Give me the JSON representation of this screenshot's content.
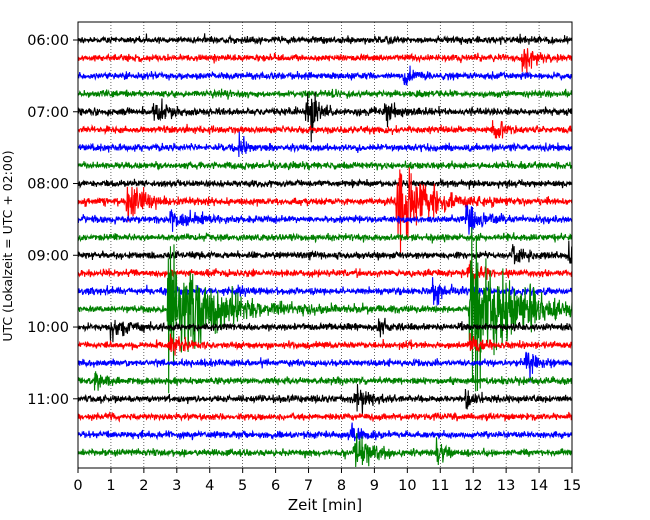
{
  "chart_data": {
    "type": "line",
    "xlabel": "Zeit  [min]",
    "ylabel": "UTC (Lokalzeit = UTC + 02:00)",
    "xlim": [
      0,
      15
    ],
    "x_ticks": [
      0,
      1,
      2,
      3,
      4,
      5,
      6,
      7,
      8,
      9,
      10,
      11,
      12,
      13,
      14,
      15
    ],
    "x_tick_labels": [
      "0",
      "1",
      "2",
      "3",
      "4",
      "5",
      "6",
      "7",
      "8",
      "9",
      "10",
      "11",
      "12",
      "13",
      "14",
      "15"
    ],
    "y_tick_labels": [
      "06:00",
      "07:00",
      "08:00",
      "09:00",
      "10:00",
      "11:00"
    ],
    "y_tick_rows": [
      0,
      4,
      8,
      12,
      16,
      20
    ],
    "row_minutes": 15,
    "color_cycle": [
      "#000000",
      "#ff0000",
      "#0000ff",
      "#008000"
    ],
    "grid": {
      "x": "dotted"
    },
    "rows": [
      {
        "label": "06:00",
        "color": "#000000",
        "events": []
      },
      {
        "label": "06:15",
        "color": "#ff0000",
        "events": [
          {
            "t": 13.5,
            "amp": 2.2,
            "dur": 0.3
          }
        ]
      },
      {
        "label": "06:30",
        "color": "#0000ff",
        "events": [
          {
            "t": 9.9,
            "amp": 1.6,
            "dur": 0.2
          }
        ]
      },
      {
        "label": "06:45",
        "color": "#008000",
        "events": []
      },
      {
        "label": "07:00",
        "color": "#000000",
        "events": [
          {
            "t": 6.95,
            "amp": 5.0,
            "dur": 0.25
          },
          {
            "t": 2.3,
            "amp": 1.5,
            "dur": 0.4
          },
          {
            "t": 9.3,
            "amp": 1.4,
            "dur": 0.3
          }
        ]
      },
      {
        "label": "07:15",
        "color": "#ff0000",
        "events": [
          {
            "t": 12.6,
            "amp": 1.5,
            "dur": 0.3
          }
        ]
      },
      {
        "label": "07:30",
        "color": "#0000ff",
        "events": [
          {
            "t": 4.9,
            "amp": 1.3,
            "dur": 0.2
          }
        ]
      },
      {
        "label": "07:45",
        "color": "#008000",
        "events": []
      },
      {
        "label": "08:00",
        "color": "#000000",
        "events": []
      },
      {
        "label": "08:15",
        "color": "#ff0000",
        "events": [
          {
            "t": 1.5,
            "amp": 2.6,
            "dur": 0.5
          },
          {
            "t": 9.7,
            "amp": 7.5,
            "dur": 0.7
          }
        ]
      },
      {
        "label": "08:30",
        "color": "#0000ff",
        "events": [
          {
            "t": 2.8,
            "amp": 1.4,
            "dur": 0.6
          },
          {
            "t": 11.8,
            "amp": 3.5,
            "dur": 0.3
          }
        ]
      },
      {
        "label": "08:45",
        "color": "#008000",
        "events": []
      },
      {
        "label": "09:00",
        "color": "#000000",
        "events": [
          {
            "t": 13.2,
            "amp": 1.3,
            "dur": 0.3
          },
          {
            "t": 14.9,
            "amp": 1.3,
            "dur": 0.2
          }
        ]
      },
      {
        "label": "09:15",
        "color": "#ff0000",
        "events": [
          {
            "t": 11.85,
            "amp": 2.0,
            "dur": 0.3
          }
        ]
      },
      {
        "label": "09:30",
        "color": "#0000ff",
        "events": [
          {
            "t": 4.75,
            "amp": 1.6,
            "dur": 0.15
          },
          {
            "t": 10.8,
            "amp": 2.0,
            "dur": 0.3
          }
        ]
      },
      {
        "label": "09:45",
        "color": "#008000",
        "events": [
          {
            "t": 2.75,
            "amp": 9.0,
            "dur": 1.2
          },
          {
            "t": 11.9,
            "amp": 10.0,
            "dur": 1.2
          }
        ]
      },
      {
        "label": "10:00",
        "color": "#000000",
        "events": [
          {
            "t": 1.0,
            "amp": 1.3,
            "dur": 0.5
          },
          {
            "t": 9.1,
            "amp": 1.6,
            "dur": 0.2
          }
        ]
      },
      {
        "label": "10:15",
        "color": "#ff0000",
        "events": [
          {
            "t": 2.8,
            "amp": 1.3,
            "dur": 0.4
          },
          {
            "t": 11.9,
            "amp": 1.4,
            "dur": 0.3
          }
        ]
      },
      {
        "label": "10:30",
        "color": "#0000ff",
        "events": [
          {
            "t": 13.6,
            "amp": 1.8,
            "dur": 0.3
          }
        ]
      },
      {
        "label": "10:45",
        "color": "#008000",
        "events": [
          {
            "t": 0.5,
            "amp": 1.2,
            "dur": 0.3
          }
        ]
      },
      {
        "label": "11:00",
        "color": "#000000",
        "events": [
          {
            "t": 8.4,
            "amp": 2.0,
            "dur": 0.4
          },
          {
            "t": 11.8,
            "amp": 2.0,
            "dur": 0.15
          }
        ]
      },
      {
        "label": "11:15",
        "color": "#ff0000",
        "events": []
      },
      {
        "label": "11:30",
        "color": "#0000ff",
        "events": [
          {
            "t": 8.3,
            "amp": 1.2,
            "dur": 0.3
          }
        ]
      },
      {
        "label": "11:45",
        "color": "#008000",
        "events": [
          {
            "t": 8.4,
            "amp": 2.5,
            "dur": 0.5
          },
          {
            "t": 10.9,
            "amp": 1.3,
            "dur": 0.3
          }
        ]
      }
    ]
  }
}
